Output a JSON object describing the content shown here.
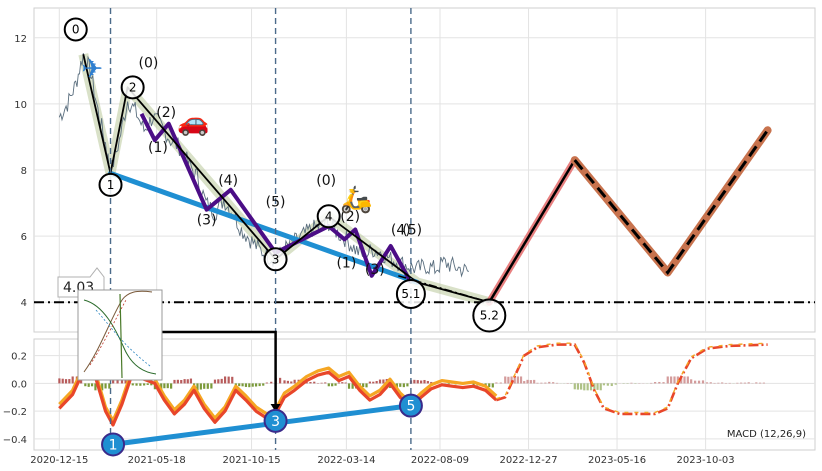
{
  "chart_data": [
    {
      "type": "line",
      "panel": "price",
      "yticks": [
        4,
        6,
        8,
        10,
        12
      ],
      "ylim": [
        3.1,
        12.9
      ],
      "xlim": [
        "2020-11-05",
        "2024-03-24"
      ],
      "price_series": [
        [
          "2020-12-15",
          9.6
        ],
        [
          "2020-12-28",
          10.0
        ],
        [
          "2021-01-10",
          10.6
        ],
        [
          "2021-01-22",
          11.5
        ],
        [
          "2021-02-02",
          11.0
        ],
        [
          "2021-02-14",
          9.8
        ],
        [
          "2021-02-26",
          8.8
        ],
        [
          "2021-03-06",
          7.9
        ],
        [
          "2021-03-20",
          8.9
        ],
        [
          "2021-04-02",
          10.1
        ],
        [
          "2021-04-14",
          9.8
        ],
        [
          "2021-04-28",
          9.2
        ],
        [
          "2021-05-12",
          9.6
        ],
        [
          "2021-05-26",
          9.3
        ],
        [
          "2021-06-09",
          8.9
        ],
        [
          "2021-06-23",
          8.7
        ],
        [
          "2021-07-07",
          8.2
        ],
        [
          "2021-07-21",
          7.8
        ],
        [
          "2021-08-04",
          7.0
        ],
        [
          "2021-08-18",
          6.7
        ],
        [
          "2021-09-01",
          7.1
        ],
        [
          "2021-09-15",
          6.7
        ],
        [
          "2021-09-29",
          6.2
        ],
        [
          "2021-10-13",
          5.9
        ],
        [
          "2021-10-27",
          5.6
        ],
        [
          "2021-11-10",
          5.4
        ],
        [
          "2021-11-22",
          5.3
        ],
        [
          "2021-12-06",
          5.6
        ],
        [
          "2021-12-20",
          5.8
        ],
        [
          "2022-01-03",
          6.0
        ],
        [
          "2022-01-17",
          6.2
        ],
        [
          "2022-01-31",
          6.3
        ],
        [
          "2022-02-14",
          6.4
        ],
        [
          "2022-02-28",
          6.1
        ],
        [
          "2022-03-14",
          5.9
        ],
        [
          "2022-03-28",
          5.6
        ],
        [
          "2022-04-11",
          5.4
        ],
        [
          "2022-04-25",
          5.6
        ],
        [
          "2022-05-09",
          5.5
        ],
        [
          "2022-05-23",
          5.3
        ],
        [
          "2022-06-06",
          5.2
        ],
        [
          "2022-06-20",
          5.1
        ],
        [
          "2022-07-04",
          5.0
        ],
        [
          "2022-07-18",
          5.1
        ],
        [
          "2022-08-01",
          5.0
        ],
        [
          "2022-08-15",
          5.2
        ],
        [
          "2022-08-29",
          5.1
        ],
        [
          "2022-09-12",
          5.0
        ],
        [
          "2022-09-26",
          4.9
        ]
      ],
      "wave_major": [
        [
          "2021-01-22",
          11.5
        ],
        [
          "2021-03-06",
          7.9
        ],
        [
          "2021-04-02",
          10.5
        ],
        [
          "2021-11-22",
          5.3
        ],
        [
          "2022-02-14",
          6.6
        ],
        [
          "2022-07-04",
          4.6
        ],
        [
          "2022-10-26",
          4.0
        ]
      ],
      "wave_minor": [
        [
          "2021-04-24",
          9.7
        ],
        [
          "2021-05-15",
          8.9
        ],
        [
          "2021-06-06",
          9.4
        ],
        [
          "2021-08-05",
          6.8
        ],
        [
          "2021-09-12",
          7.4
        ],
        [
          "2021-11-22",
          5.5
        ],
        [
          "2022-02-14",
          6.3
        ],
        [
          "2022-03-11",
          5.9
        ],
        [
          "2022-03-28",
          6.2
        ],
        [
          "2022-04-23",
          4.8
        ],
        [
          "2022-05-23",
          5.7
        ],
        [
          "2022-06-24",
          4.6
        ]
      ],
      "trendline": [
        [
          "2021-03-06",
          7.9
        ],
        [
          "2022-07-04",
          4.6
        ]
      ],
      "dashdot_segment": [
        [
          "2022-06-04",
          4.8
        ],
        [
          "2022-10-26",
          4.0
        ]
      ],
      "forecast_projection": [
        [
          "2022-10-26",
          4.0
        ],
        [
          "2023-03-10",
          8.3
        ],
        [
          "2023-08-04",
          4.9
        ],
        [
          "2024-01-09",
          9.2
        ]
      ],
      "forecast_dashed": [
        [
          "2023-03-10",
          8.3
        ],
        [
          "2023-08-04",
          4.9
        ],
        [
          "2024-01-09",
          9.2
        ]
      ],
      "horizontal_level": 4.0,
      "level_label": "4.03",
      "vlines": [
        "2021-03-06",
        "2021-11-22",
        "2022-06-24"
      ],
      "circle_labels": [
        {
          "text": "0",
          "x": "2021-01-10",
          "y": 12.25
        },
        {
          "text": "1",
          "x": "2021-03-06",
          "y": 7.55
        },
        {
          "text": "2",
          "x": "2021-04-10",
          "y": 10.5
        },
        {
          "text": "3",
          "x": "2021-11-22",
          "y": 5.3
        },
        {
          "text": "4",
          "x": "2022-02-14",
          "y": 6.6
        },
        {
          "text": "5.1",
          "x": "2022-06-24",
          "y": 4.25
        },
        {
          "text": "5.2",
          "x": "2022-10-26",
          "y": 3.6
        }
      ],
      "wave_annotations": [
        {
          "text": "(0)",
          "x": "2021-05-05",
          "y": 11.1
        },
        {
          "text": "(2)",
          "x": "2021-06-02",
          "y": 9.6
        },
        {
          "text": "(1)",
          "x": "2021-05-20",
          "y": 8.55
        },
        {
          "text": "(4)",
          "x": "2021-09-08",
          "y": 7.55
        },
        {
          "text": "(3)",
          "x": "2021-08-05",
          "y": 6.35
        },
        {
          "text": "(5)",
          "x": "2021-11-22",
          "y": 6.9
        },
        {
          "text": "(0)",
          "x": "2022-02-10",
          "y": 7.55
        },
        {
          "text": "(2)",
          "x": "2022-03-20",
          "y": 6.45
        },
        {
          "text": "(1)",
          "x": "2022-03-14",
          "y": 5.05
        },
        {
          "text": "(3)",
          "x": "2022-04-28",
          "y": 4.85
        },
        {
          "text": "(4)",
          "x": "2022-06-08",
          "y": 6.05
        },
        {
          "text": "(5)",
          "x": "2022-06-26",
          "y": 6.05
        }
      ],
      "icons": [
        {
          "name": "airplane-icon",
          "glyph": "✈",
          "color": "#2f7fd0",
          "x": "2021-02-05",
          "y": 10.8
        },
        {
          "name": "car-icon",
          "glyph": "🚗",
          "color": "#1e90ff",
          "x": "2021-07-15",
          "y": 9.2
        },
        {
          "name": "scooter-icon",
          "glyph": "🛵",
          "color": "#f08a1d",
          "x": "2022-03-30",
          "y": 6.85
        }
      ],
      "colors": {
        "price": "#5a6e7e",
        "wave_major": "#000000",
        "wave_minor": "#4b0d86",
        "trendline": "#1f8fd2",
        "forecast": "#e88080",
        "forecast_dashed": "#c8734e",
        "vline": "#4a6a8a",
        "band": "#b9c99b"
      }
    },
    {
      "type": "line",
      "panel": "macd",
      "indicator_label": "MACD (12,26,9)",
      "yticks": [
        -0.4,
        -0.2,
        0.0,
        0.2
      ],
      "ytick_labels": [
        "−0.4",
        "−0.2",
        "0.0",
        "0.2"
      ],
      "ylim": [
        -0.48,
        0.32
      ],
      "xticks": [
        "2020-12-15",
        "2021-05-18",
        "2021-10-15",
        "2022-03-14",
        "2022-08-09",
        "2022-12-27",
        "2023-05-16",
        "2023-10-03"
      ],
      "macd_line": [
        [
          "2020-12-15",
          -0.18
        ],
        [
          "2021-01-05",
          -0.08
        ],
        [
          "2021-01-25",
          0.12
        ],
        [
          "2021-02-10",
          0.05
        ],
        [
          "2021-02-26",
          -0.2
        ],
        [
          "2021-03-10",
          -0.3
        ],
        [
          "2021-03-24",
          -0.15
        ],
        [
          "2021-04-10",
          0.08
        ],
        [
          "2021-04-28",
          0.03
        ],
        [
          "2021-05-15",
          0.0
        ],
        [
          "2021-05-30",
          -0.12
        ],
        [
          "2021-06-15",
          -0.22
        ],
        [
          "2021-07-01",
          -0.15
        ],
        [
          "2021-07-16",
          -0.05
        ],
        [
          "2021-08-01",
          -0.18
        ],
        [
          "2021-08-18",
          -0.28
        ],
        [
          "2021-09-03",
          -0.2
        ],
        [
          "2021-09-20",
          -0.05
        ],
        [
          "2021-10-06",
          -0.12
        ],
        [
          "2021-10-22",
          -0.2
        ],
        [
          "2021-11-08",
          -0.25
        ],
        [
          "2021-11-22",
          -0.22
        ],
        [
          "2021-12-06",
          -0.1
        ],
        [
          "2021-12-22",
          -0.05
        ],
        [
          "2022-01-10",
          0.02
        ],
        [
          "2022-01-28",
          0.06
        ],
        [
          "2022-02-14",
          0.08
        ],
        [
          "2022-03-02",
          0.02
        ],
        [
          "2022-03-18",
          0.05
        ],
        [
          "2022-04-04",
          -0.05
        ],
        [
          "2022-04-20",
          -0.12
        ],
        [
          "2022-05-06",
          -0.08
        ],
        [
          "2022-05-22",
          0.0
        ],
        [
          "2022-06-07",
          -0.1
        ],
        [
          "2022-06-24",
          -0.17
        ],
        [
          "2022-07-10",
          -0.1
        ],
        [
          "2022-07-26",
          -0.04
        ],
        [
          "2022-08-12",
          -0.01
        ],
        [
          "2022-08-28",
          -0.02
        ],
        [
          "2022-09-14",
          -0.03
        ],
        [
          "2022-10-01",
          -0.02
        ],
        [
          "2022-10-20",
          -0.05
        ],
        [
          "2022-11-06",
          -0.12
        ],
        [
          "2022-11-20",
          -0.1
        ],
        [
          "2022-12-05",
          0.05
        ],
        [
          "2022-12-20",
          0.2
        ],
        [
          "2023-01-10",
          0.26
        ],
        [
          "2023-02-10",
          0.28
        ],
        [
          "2023-03-10",
          0.28
        ],
        [
          "2023-03-25",
          0.15
        ],
        [
          "2023-04-10",
          -0.05
        ],
        [
          "2023-04-25",
          -0.18
        ],
        [
          "2023-05-20",
          -0.22
        ],
        [
          "2023-06-20",
          -0.22
        ],
        [
          "2023-07-15",
          -0.22
        ],
        [
          "2023-08-04",
          -0.18
        ],
        [
          "2023-08-20",
          0.0
        ],
        [
          "2023-09-10",
          0.18
        ],
        [
          "2023-10-05",
          0.25
        ],
        [
          "2023-11-10",
          0.27
        ],
        [
          "2024-01-09",
          0.28
        ]
      ],
      "macd_trendline": [
        [
          "2021-03-10",
          -0.44
        ],
        [
          "2022-06-24",
          -0.16
        ]
      ],
      "circle_labels": [
        {
          "text": "1",
          "x": "2021-03-10",
          "y": -0.44
        },
        {
          "text": "3",
          "x": "2021-11-22",
          "y": -0.27
        },
        {
          "text": "5",
          "x": "2022-06-24",
          "y": -0.16
        }
      ],
      "colors": {
        "macd": "#e8462a",
        "signal": "#f5a623",
        "hist_pos": "#b04a4a",
        "hist_neg": "#6b8e23",
        "trend": "#1f8fd2",
        "circle": "#1f8fd2"
      }
    }
  ]
}
